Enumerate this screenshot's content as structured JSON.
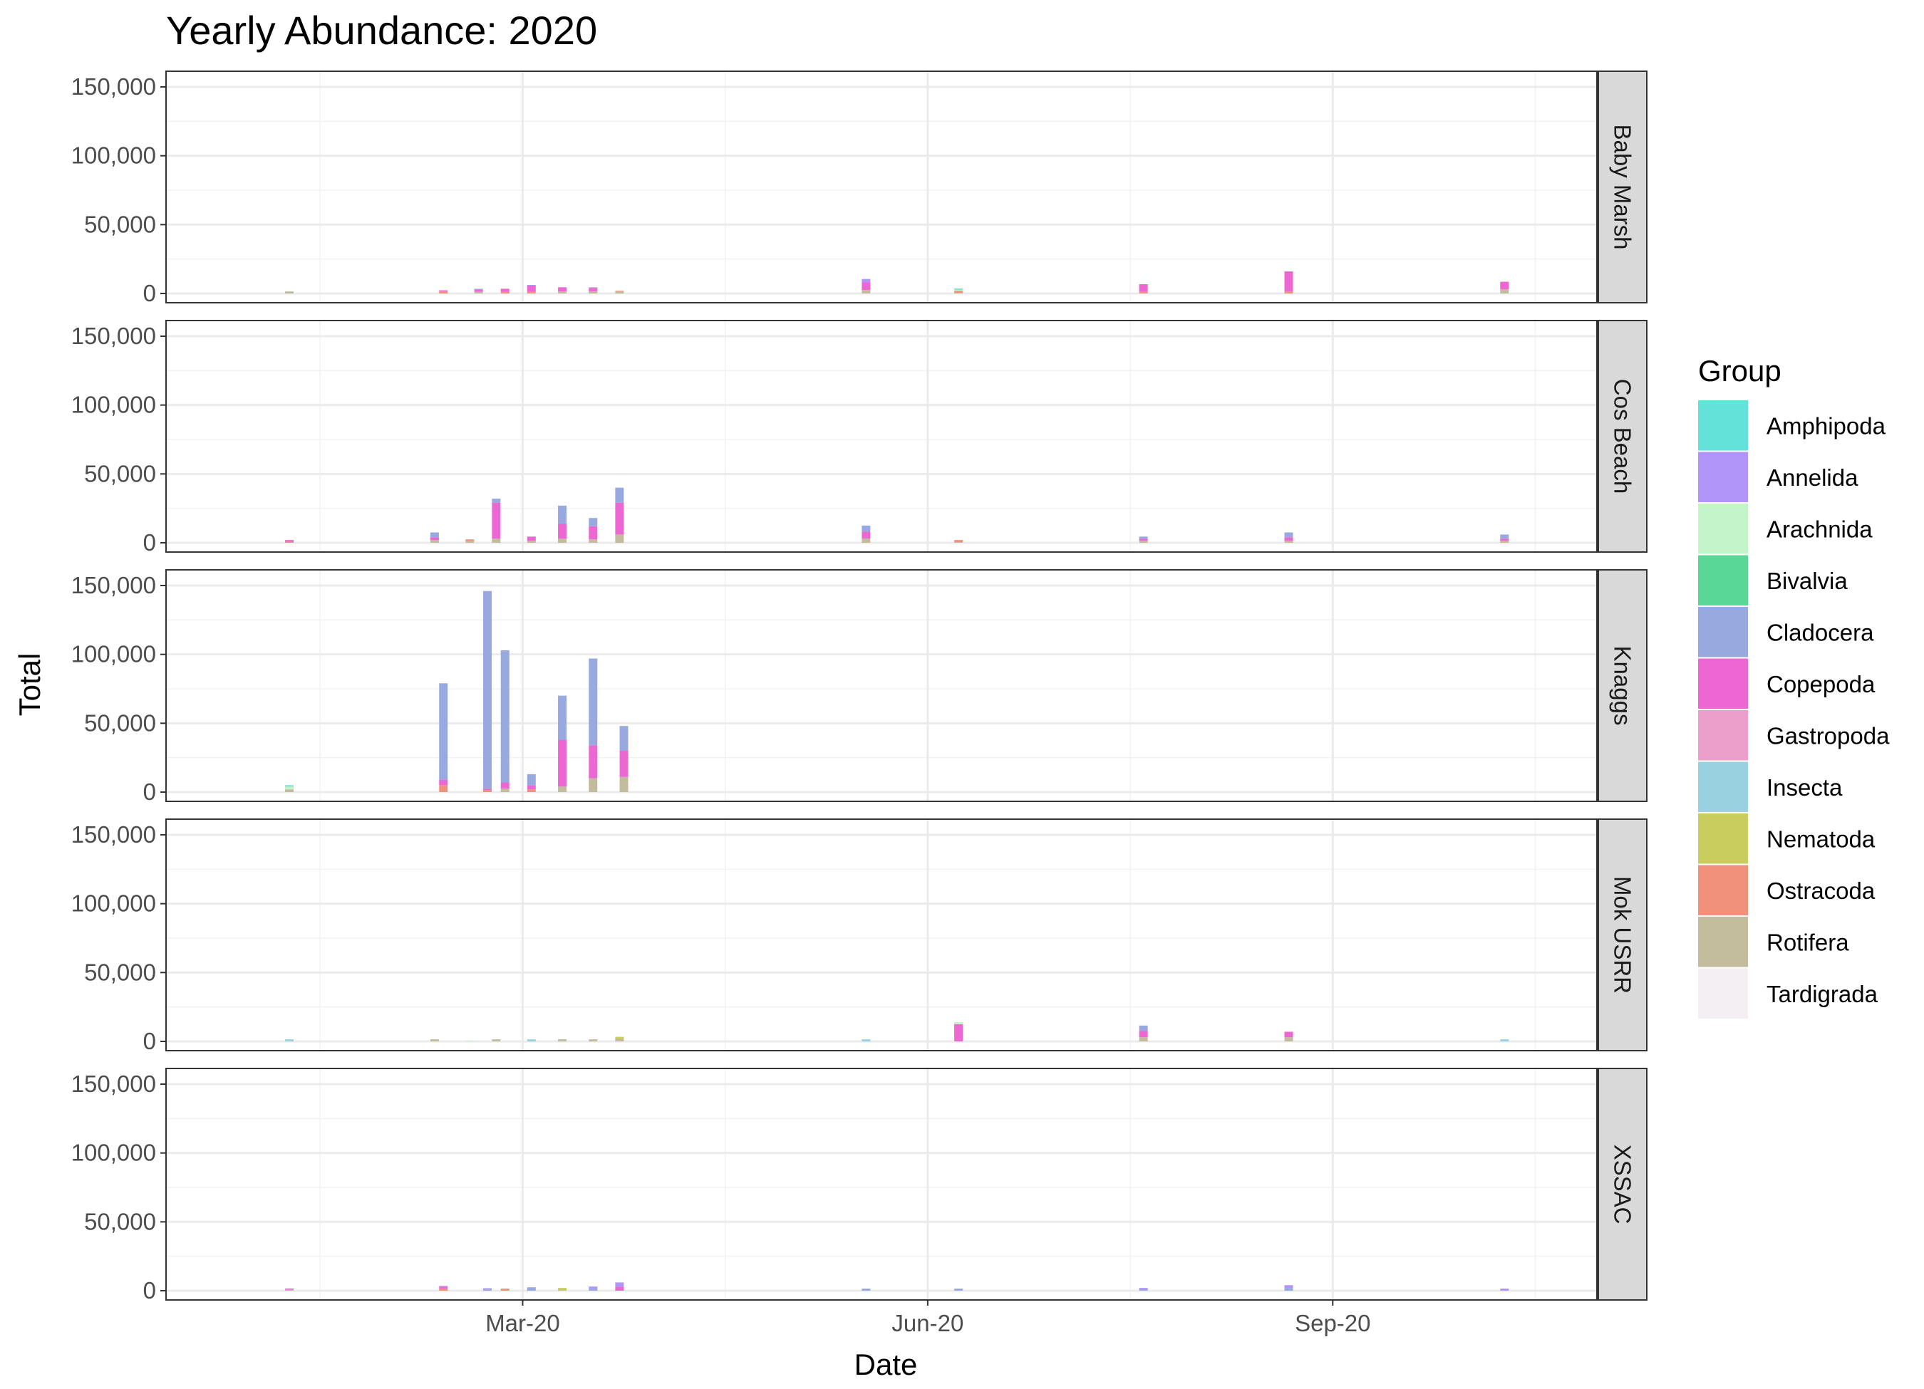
{
  "chart_data": {
    "type": "bar",
    "stacked": true,
    "title": "Yearly Abundance: 2020",
    "xlabel": "Date",
    "ylabel": "Total",
    "ylim": [
      0,
      150000
    ],
    "yticks": [
      0,
      50000,
      100000,
      150000
    ],
    "ytick_labels": [
      "0",
      "50,000",
      "100,000",
      "150,000"
    ],
    "xlim": [
      "2019-12-11",
      "2020-10-31"
    ],
    "xticks": [
      "2020-03-01",
      "2020-06-01",
      "2020-09-01"
    ],
    "xtick_labels": [
      "Mar-20",
      "Jun-20",
      "Sep-20"
    ],
    "grid": true,
    "legend": {
      "title": "Group",
      "position": "right",
      "entries": [
        "Amphipoda",
        "Annelida",
        "Arachnida",
        "Bivalvia",
        "Cladocera",
        "Copepoda",
        "Gastropoda",
        "Insecta",
        "Nematoda",
        "Ostracoda",
        "Rotifera",
        "Tardigrada"
      ]
    },
    "colors": {
      "Amphipoda": "#62e2d8",
      "Annelida": "#b194f8",
      "Arachnida": "#c4f5c8",
      "Bivalvia": "#58d797",
      "Cladocera": "#98a9e0",
      "Copepoda": "#ec67d1",
      "Gastropoda": "#eb9ec9",
      "Insecta": "#9ad1e1",
      "Nematoda": "#c8cd5e",
      "Ostracoda": "#f0917c",
      "Rotifera": "#c2bc9d",
      "Tardigrada": "#f2eef2"
    },
    "facets": [
      {
        "name": "Baby Marsh",
        "samples": [
          {
            "date": "2020-01-08",
            "values": {
              "Rotifera": 1500
            }
          },
          {
            "date": "2020-02-12",
            "values": {
              "Ostracoda": 1500,
              "Copepoda": 800
            }
          },
          {
            "date": "2020-02-20",
            "values": {
              "Rotifera": 1200,
              "Copepoda": 1600,
              "Cladocera": 600
            }
          },
          {
            "date": "2020-02-26",
            "values": {
              "Ostracoda": 1200,
              "Copepoda": 2200
            }
          },
          {
            "date": "2020-03-03",
            "values": {
              "Ostracoda": 1200,
              "Copepoda": 4500,
              "Annelida": 500
            }
          },
          {
            "date": "2020-03-10",
            "values": {
              "Rotifera": 1500,
              "Copepoda": 3000
            }
          },
          {
            "date": "2020-03-17",
            "values": {
              "Rotifera": 1500,
              "Copepoda": 2500,
              "Annelida": 500
            }
          },
          {
            "date": "2020-03-23",
            "values": {
              "Rotifera": 1500,
              "Ostracoda": 500
            }
          },
          {
            "date": "2020-05-18",
            "values": {
              "Rotifera": 2500,
              "Copepoda": 5500,
              "Annelida": 2500
            }
          },
          {
            "date": "2020-06-08",
            "values": {
              "Ostracoda": 1500,
              "Arachnida": 800,
              "Amphipoda": 800,
              "Rotifera": 500
            }
          },
          {
            "date": "2020-07-20",
            "values": {
              "Ostracoda": 1200,
              "Copepoda": 5500
            }
          },
          {
            "date": "2020-08-22",
            "values": {
              "Ostracoda": 1500,
              "Copepoda": 14500
            }
          },
          {
            "date": "2020-10-10",
            "values": {
              "Rotifera": 3000,
              "Copepoda": 5500
            }
          }
        ]
      },
      {
        "name": "Cos Beach",
        "samples": [
          {
            "date": "2020-01-08",
            "values": {
              "Ostracoda": 800,
              "Copepoda": 1200
            }
          },
          {
            "date": "2020-02-10",
            "values": {
              "Rotifera": 2000,
              "Copepoda": 2000,
              "Cladocera": 3500
            }
          },
          {
            "date": "2020-02-18",
            "values": {
              "Rotifera": 1500,
              "Ostracoda": 1000
            }
          },
          {
            "date": "2020-02-24",
            "values": {
              "Rotifera": 3000,
              "Copepoda": 26000,
              "Cladocera": 3000
            }
          },
          {
            "date": "2020-03-03",
            "values": {
              "Rotifera": 1500,
              "Copepoda": 3000
            }
          },
          {
            "date": "2020-03-10",
            "values": {
              "Rotifera": 3000,
              "Copepoda": 11000,
              "Cladocera": 13000
            }
          },
          {
            "date": "2020-03-17",
            "values": {
              "Rotifera": 2500,
              "Copepoda": 9500,
              "Cladocera": 6000
            }
          },
          {
            "date": "2020-03-23",
            "values": {
              "Rotifera": 6000,
              "Copepoda": 23000,
              "Cladocera": 11000
            }
          },
          {
            "date": "2020-05-18",
            "values": {
              "Rotifera": 3000,
              "Copepoda": 5000,
              "Cladocera": 4500
            }
          },
          {
            "date": "2020-06-08",
            "values": {
              "Ostracoda": 1500,
              "Rotifera": 500
            }
          },
          {
            "date": "2020-07-20",
            "values": {
              "Rotifera": 1500,
              "Copepoda": 1500,
              "Cladocera": 1500
            }
          },
          {
            "date": "2020-08-22",
            "values": {
              "Rotifera": 1500,
              "Copepoda": 2500,
              "Cladocera": 3500
            }
          },
          {
            "date": "2020-10-10",
            "values": {
              "Rotifera": 1500,
              "Copepoda": 1500,
              "Cladocera": 3000
            }
          }
        ]
      },
      {
        "name": "Knaggs",
        "samples": [
          {
            "date": "2020-01-08",
            "values": {
              "Rotifera": 2000,
              "Arachnida": 2000,
              "Amphipoda": 1000
            }
          },
          {
            "date": "2020-02-12",
            "values": {
              "Ostracoda": 5000,
              "Copepoda": 4000,
              "Cladocera": 70000
            }
          },
          {
            "date": "2020-02-22",
            "values": {
              "Ostracoda": 1500,
              "Copepoda": 1000,
              "Cladocera": 143500
            }
          },
          {
            "date": "2020-02-26",
            "values": {
              "Rotifera": 2500,
              "Copepoda": 4500,
              "Cladocera": 96000
            }
          },
          {
            "date": "2020-03-03",
            "values": {
              "Ostracoda": 2000,
              "Copepoda": 3000,
              "Cladocera": 8000
            }
          },
          {
            "date": "2020-03-10",
            "values": {
              "Rotifera": 4000,
              "Copepoda": 34000,
              "Cladocera": 32000
            }
          },
          {
            "date": "2020-03-17",
            "values": {
              "Rotifera": 10000,
              "Copepoda": 24000,
              "Cladocera": 63000
            }
          },
          {
            "date": "2020-03-24",
            "values": {
              "Rotifera": 11000,
              "Copepoda": 19000,
              "Cladocera": 18000
            }
          }
        ]
      },
      {
        "name": "Mok USRR",
        "samples": [
          {
            "date": "2020-01-08",
            "values": {
              "Insecta": 1500
            }
          },
          {
            "date": "2020-02-10",
            "values": {
              "Rotifera": 1500
            }
          },
          {
            "date": "2020-02-18",
            "values": {
              "Arachnida": 500
            }
          },
          {
            "date": "2020-02-24",
            "values": {
              "Rotifera": 1500
            }
          },
          {
            "date": "2020-03-03",
            "values": {
              "Insecta": 1500
            }
          },
          {
            "date": "2020-03-10",
            "values": {
              "Rotifera": 1500
            }
          },
          {
            "date": "2020-03-17",
            "values": {
              "Rotifera": 1500
            }
          },
          {
            "date": "2020-03-23",
            "values": {
              "Rotifera": 1800,
              "Nematoda": 1500
            }
          },
          {
            "date": "2020-05-18",
            "values": {
              "Insecta": 1500
            }
          },
          {
            "date": "2020-06-08",
            "values": {
              "Copepoda": 12500,
              "Arachnida": 1500
            }
          },
          {
            "date": "2020-07-20",
            "values": {
              "Rotifera": 3000,
              "Copepoda": 4500,
              "Cladocera": 4000
            }
          },
          {
            "date": "2020-08-22",
            "values": {
              "Rotifera": 3000,
              "Copepoda": 4000
            }
          },
          {
            "date": "2020-10-10",
            "values": {
              "Insecta": 1500
            }
          }
        ]
      },
      {
        "name": "XSSAC",
        "samples": [
          {
            "date": "2020-01-08",
            "values": {
              "Copepoda": 800,
              "Gastropoda": 800
            }
          },
          {
            "date": "2020-02-12",
            "values": {
              "Ostracoda": 1500,
              "Copepoda": 1500,
              "Annelida": 500
            }
          },
          {
            "date": "2020-02-22",
            "values": {
              "Cladocera": 1000,
              "Annelida": 800
            }
          },
          {
            "date": "2020-02-26",
            "values": {
              "Ostracoda": 1500
            }
          },
          {
            "date": "2020-03-03",
            "values": {
              "Cladocera": 2500
            }
          },
          {
            "date": "2020-03-10",
            "values": {
              "Nematoda": 1500,
              "Rotifera": 500
            }
          },
          {
            "date": "2020-03-17",
            "values": {
              "Cladocera": 1500,
              "Annelida": 1500
            }
          },
          {
            "date": "2020-03-23",
            "values": {
              "Copepoda": 3000,
              "Annelida": 3000
            }
          },
          {
            "date": "2020-05-18",
            "values": {
              "Cladocera": 1500
            }
          },
          {
            "date": "2020-06-08",
            "values": {
              "Cladocera": 1500
            }
          },
          {
            "date": "2020-07-20",
            "values": {
              "Cladocera": 1000,
              "Annelida": 1000
            }
          },
          {
            "date": "2020-08-22",
            "values": {
              "Cladocera": 2000,
              "Annelida": 2000
            }
          },
          {
            "date": "2020-10-10",
            "values": {
              "Annelida": 1500
            }
          }
        ]
      }
    ]
  }
}
